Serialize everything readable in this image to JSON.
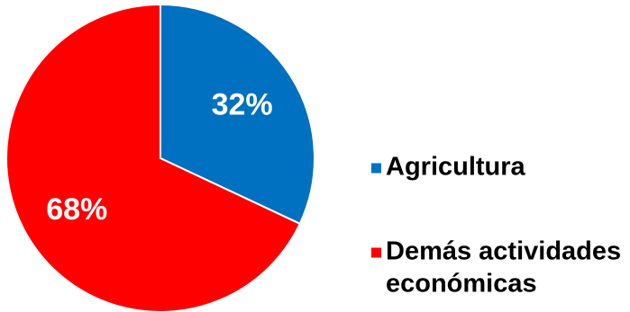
{
  "chart_data": {
    "type": "pie",
    "categories": [
      "Agricultura",
      "Demás actividades económicas"
    ],
    "values": [
      32,
      68
    ],
    "labels": [
      "32%",
      "68%"
    ],
    "colors": [
      "#0070c0",
      "#ff0000"
    ],
    "legend": {
      "placement": "right",
      "items": [
        {
          "lines": [
            "Agricultura"
          ]
        },
        {
          "lines": [
            "Demás actividades",
            "económicas"
          ]
        }
      ]
    }
  }
}
